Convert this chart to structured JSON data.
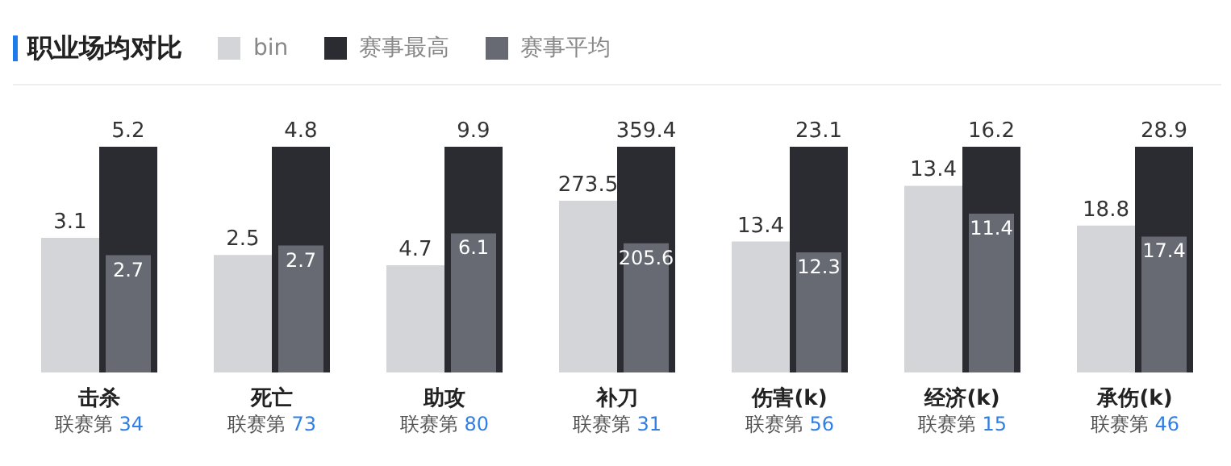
{
  "chart_data": [
    {
      "type": "bar",
      "title": "职业场均对比",
      "legend": "top",
      "data_labels": true,
      "categories": [
        "击杀"
      ],
      "annotations": [
        "联赛第 34"
      ],
      "series": [
        {
          "name": "bin",
          "color": "#d4d5d9",
          "values": [
            3.1
          ]
        },
        {
          "name": "赛事最高",
          "color": "#2b2c31",
          "values": [
            5.2
          ]
        },
        {
          "name": "赛事平均",
          "color": "#676a73",
          "values": [
            2.7
          ]
        }
      ]
    },
    {
      "type": "bar",
      "data_labels": true,
      "categories": [
        "死亡"
      ],
      "annotations": [
        "联赛第 73"
      ],
      "series": [
        {
          "color": "#d4d5d9",
          "values": [
            2.5
          ]
        },
        {
          "color": "#2b2c31",
          "values": [
            4.8
          ]
        },
        {
          "color": "#676a73",
          "values": [
            2.7
          ]
        }
      ]
    },
    {
      "type": "bar",
      "data_labels": true,
      "categories": [
        "助攻"
      ],
      "annotations": [
        "联赛第 80"
      ],
      "series": [
        {
          "color": "#d4d5d9",
          "values": [
            4.7
          ]
        },
        {
          "color": "#2b2c31",
          "values": [
            9.9
          ]
        },
        {
          "color": "#676a73",
          "values": [
            6.1
          ]
        }
      ]
    },
    {
      "type": "bar",
      "data_labels": true,
      "categories": [
        "补刀"
      ],
      "annotations": [
        "联赛第 31"
      ],
      "series": [
        {
          "color": "#d4d5d9",
          "values": [
            273.5
          ]
        },
        {
          "color": "#2b2c31",
          "values": [
            359.4
          ]
        },
        {
          "color": "#676a73",
          "values": [
            205.6
          ]
        }
      ]
    },
    {
      "type": "bar",
      "data_labels": true,
      "categories": [
        "伤害(k)"
      ],
      "annotations": [
        "联赛第 56"
      ],
      "series": [
        {
          "color": "#d4d5d9",
          "values": [
            13.4
          ]
        },
        {
          "color": "#2b2c31",
          "values": [
            23.1
          ]
        },
        {
          "color": "#676a73",
          "values": [
            12.3
          ]
        }
      ]
    },
    {
      "type": "bar",
      "data_labels": true,
      "categories": [
        "经济(k)"
      ],
      "annotations": [
        "联赛第 15"
      ],
      "series": [
        {
          "color": "#d4d5d9",
          "values": [
            13.4
          ]
        },
        {
          "color": "#2b2c31",
          "values": [
            16.2
          ]
        },
        {
          "color": "#676a73",
          "values": [
            11.4
          ]
        }
      ]
    },
    {
      "type": "bar",
      "data_labels": true,
      "categories": [
        "承伤(k)"
      ],
      "annotations": [
        "联赛第 46"
      ],
      "series": [
        {
          "color": "#d4d5d9",
          "values": [
            18.8
          ]
        },
        {
          "color": "#2b2c31",
          "values": [
            28.9
          ]
        },
        {
          "color": "#676a73",
          "values": [
            17.4
          ]
        }
      ]
    }
  ]
}
